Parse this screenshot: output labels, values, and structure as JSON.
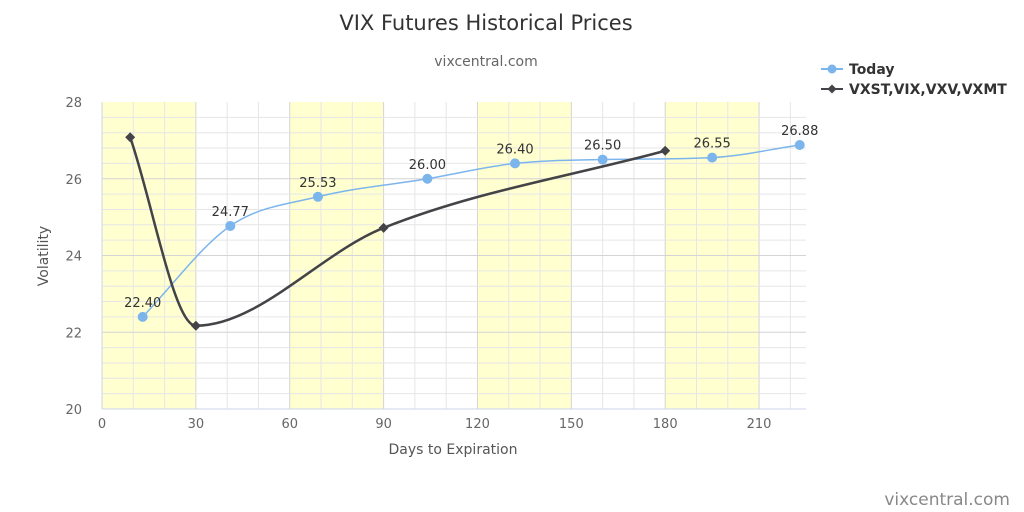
{
  "chart_data": {
    "type": "line",
    "title": "VIX Futures Historical Prices",
    "subtitle": "vixcentral.com",
    "xlabel": "Days to Expiration",
    "ylabel": "Volatility",
    "xlim": [
      0,
      225
    ],
    "ylim": [
      20,
      28
    ],
    "x_ticks": [
      0,
      30,
      60,
      90,
      120,
      150,
      180,
      210
    ],
    "y_ticks": [
      20,
      22,
      24,
      26,
      28
    ],
    "band_intervals": [
      [
        0,
        30
      ],
      [
        60,
        90
      ],
      [
        120,
        150
      ],
      [
        180,
        210
      ]
    ],
    "band_color": "#ffffd0",
    "grid": true,
    "legend_position": "top-right",
    "series": [
      {
        "name": "Today",
        "color": "#7cb5ec",
        "marker": "circle",
        "show_labels": true,
        "points": [
          {
            "x": 13,
            "y": 22.4,
            "label": "22.40"
          },
          {
            "x": 41,
            "y": 24.77,
            "label": "24.77"
          },
          {
            "x": 69,
            "y": 25.53,
            "label": "25.53"
          },
          {
            "x": 104,
            "y": 26.0,
            "label": "26.00"
          },
          {
            "x": 132,
            "y": 26.4,
            "label": "26.40"
          },
          {
            "x": 160,
            "y": 26.5,
            "label": "26.50"
          },
          {
            "x": 195,
            "y": 26.55,
            "label": "26.55"
          },
          {
            "x": 223,
            "y": 26.88,
            "label": "26.88"
          }
        ]
      },
      {
        "name": "VXST,VIX,VXV,VXMT",
        "color": "#434348",
        "marker": "diamond",
        "show_labels": false,
        "points": [
          {
            "x": 9,
            "y": 27.08
          },
          {
            "x": 30,
            "y": 22.17
          },
          {
            "x": 90,
            "y": 24.72
          },
          {
            "x": 180,
            "y": 26.73
          }
        ]
      }
    ]
  },
  "credit": "vixcentral.com"
}
